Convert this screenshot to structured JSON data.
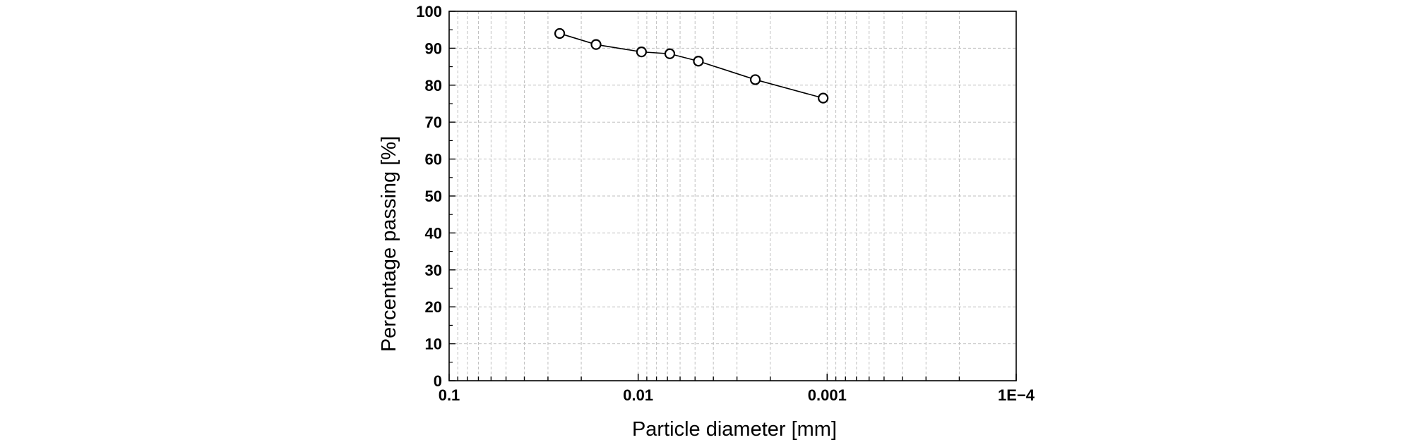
{
  "chart_data": {
    "type": "scatter",
    "title": "",
    "xlabel": "Particle diameter [mm]",
    "ylabel": "Percentage passing [%]",
    "x_scale": "log",
    "x_reversed": true,
    "xlim": [
      0.1,
      0.0001
    ],
    "ylim": [
      0,
      100
    ],
    "x_ticks": [
      {
        "value": 0.1,
        "label": "0.1"
      },
      {
        "value": 0.01,
        "label": "0.01"
      },
      {
        "value": 0.001,
        "label": "0.001"
      },
      {
        "value": 0.0001,
        "label": "1E−4"
      }
    ],
    "y_ticks": [
      {
        "value": 0,
        "label": "0"
      },
      {
        "value": 10,
        "label": "10"
      },
      {
        "value": 20,
        "label": "20"
      },
      {
        "value": 30,
        "label": "30"
      },
      {
        "value": 40,
        "label": "40"
      },
      {
        "value": 50,
        "label": "50"
      },
      {
        "value": 60,
        "label": "60"
      },
      {
        "value": 70,
        "label": "70"
      },
      {
        "value": 80,
        "label": "80"
      },
      {
        "value": 90,
        "label": "90"
      },
      {
        "value": 100,
        "label": "100"
      }
    ],
    "grid": true,
    "legend": "none",
    "series": [
      {
        "marker": "open-circle",
        "connected": true,
        "points": [
          {
            "x": 0.026,
            "y": 94
          },
          {
            "x": 0.0167,
            "y": 91
          },
          {
            "x": 0.0096,
            "y": 89
          },
          {
            "x": 0.0068,
            "y": 88.5
          },
          {
            "x": 0.0048,
            "y": 86.5
          },
          {
            "x": 0.0024,
            "y": 81.5
          },
          {
            "x": 0.00105,
            "y": 76.5
          }
        ]
      }
    ]
  },
  "colors": {
    "line": "#000000",
    "marker_edge": "#000000",
    "marker_fill": "#ffffff",
    "grid": "#bfbfbf",
    "frame": "#000000"
  }
}
